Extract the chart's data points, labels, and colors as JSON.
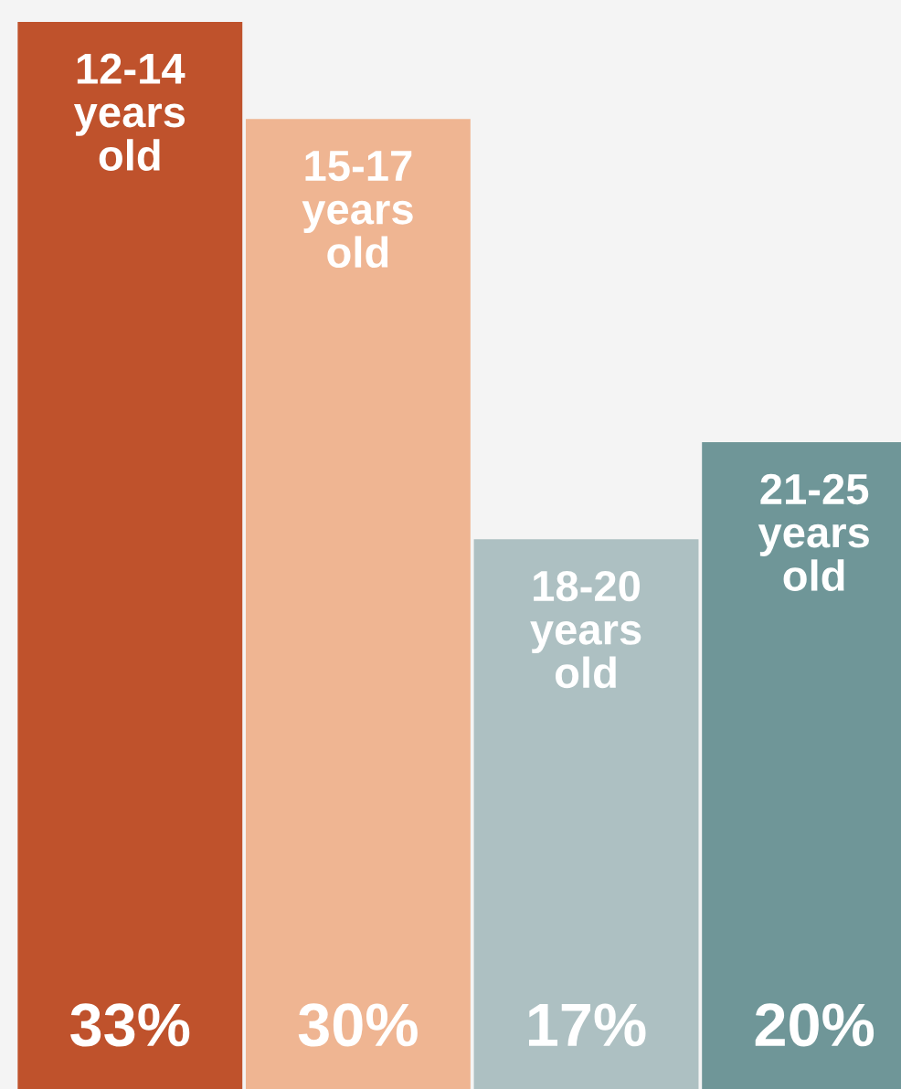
{
  "chart_data": {
    "type": "bar",
    "categories": [
      "12-14 years old",
      "15-17 years old",
      "18-20 years old",
      "21-25 years old"
    ],
    "values": [
      33,
      30,
      17,
      20
    ],
    "colors": [
      "#bf522c",
      "#efb592",
      "#adc0c2",
      "#6f9698"
    ],
    "value_labels": [
      "33%",
      "30%",
      "17%",
      "20%"
    ]
  }
}
